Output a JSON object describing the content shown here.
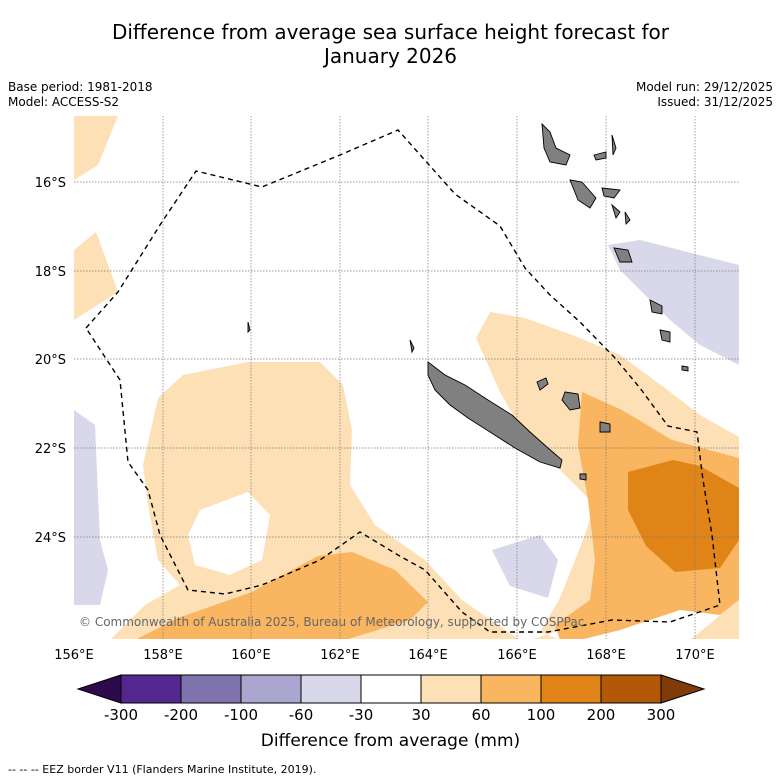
{
  "title": "Difference from average sea surface height forecast for January 2026",
  "title_line1": "Difference from average sea surface height forecast for",
  "title_line2": "January 2026",
  "base_period": "Base period: 1981-2018",
  "model": "Model: ACCESS-S2",
  "model_run": "Model run: 29/12/2025",
  "issued": "Issued: 31/12/2025",
  "copyright": "© Commonwealth of Australia 2025, Bureau of Meteorology, supported by COSPPac",
  "lon_labels": [
    "156°E",
    "158°E",
    "160°E",
    "162°E",
    "164°E",
    "166°E",
    "168°E",
    "170°E"
  ],
  "lat_labels": [
    "16°S",
    "18°S",
    "20°S",
    "22°S",
    "24°S"
  ],
  "colorbar": {
    "title": "Difference from average (mm)",
    "tick_labels": [
      "-300",
      "-200",
      "-100",
      "-60",
      "-30",
      "30",
      "60",
      "100",
      "200",
      "300"
    ],
    "colors": {
      "below_-300": "#2d0a4e",
      "-300_-200": "#54278f",
      "-200_-100": "#7f73ad",
      "-100_-60": "#aaa6cf",
      "-60_-30": "#d8d8ea",
      "-30_30": "#ffffff",
      "30_60": "#fde0b6",
      "60_100": "#f9b55f",
      "100_200": "#e08418",
      "200_300": "#b35806",
      "above_300": "#7f3b08"
    }
  },
  "land_color": "#808080",
  "footnote": "--  --  -- EEZ border V11 (Flanders Marine Institute, 2019)."
}
